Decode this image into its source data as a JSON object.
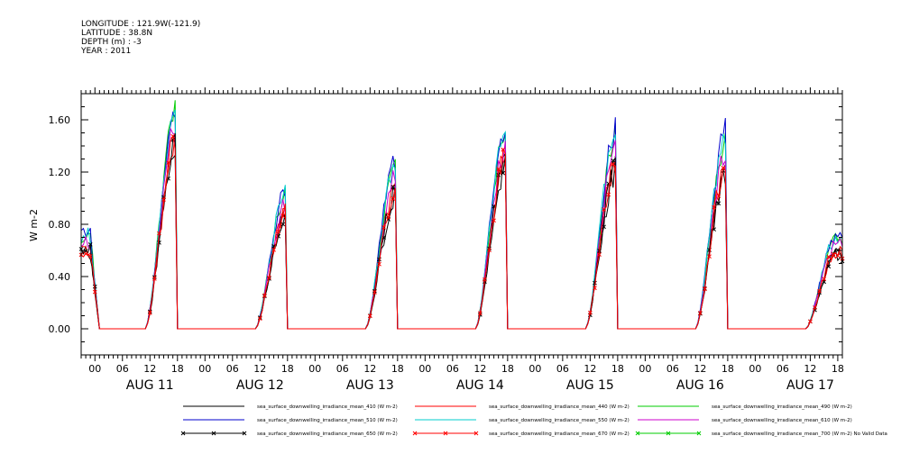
{
  "header": {
    "longitude": "LONGITUDE : 121.9W(-121.9)",
    "latitude": "LATITUDE : 38.8N",
    "depth": "DEPTH (m) : -3",
    "year": "YEAR : 2011"
  },
  "chart_data": {
    "type": "line",
    "ylabel": "W m-2",
    "ylim": [
      -0.2,
      1.8
    ],
    "yticks": [
      "0.00",
      "0.40",
      "0.80",
      "1.20",
      "1.60"
    ],
    "xlim_hours": [
      -3,
      163
    ],
    "xtick_labels": [
      "00",
      "06",
      "12",
      "18",
      "00",
      "06",
      "12",
      "18",
      "00",
      "06",
      "12",
      "18",
      "00",
      "06",
      "12",
      "18",
      "00",
      "06",
      "12",
      "18",
      "00",
      "06",
      "12",
      "18",
      "00",
      "06",
      "12",
      "18"
    ],
    "day_labels": [
      "AUG 11",
      "AUG 12",
      "AUG 13",
      "AUG 14",
      "AUG 15",
      "AUG 16",
      "AUG 17"
    ],
    "daily_peaks": [
      {
        "day": "AUG 11",
        "peak_hour": 18,
        "peak": 1.45
      },
      {
        "day": "AUG 12",
        "peak_hour": 42,
        "peak": 0.9
      },
      {
        "day": "AUG 13",
        "peak_hour": 66,
        "peak": 1.1
      },
      {
        "day": "AUG 14",
        "peak_hour": 90,
        "peak": 1.33
      },
      {
        "day": "AUG 15",
        "peak_hour": 114,
        "peak": 1.3
      },
      {
        "day": "AUG 16",
        "peak_hour": 138,
        "peak": 1.27
      },
      {
        "day": "AUG 17",
        "peak_hour": 162,
        "peak": 0.6
      }
    ],
    "series": [
      {
        "name": "sea_surface_downwelling_irradiance_mean_410 (W m-2)",
        "color": "#000000",
        "scale": 0.95,
        "marker": "none"
      },
      {
        "name": "sea_surface_downwelling_irradiance_mean_440 (W m-2)",
        "color": "#ff0000",
        "scale": 1.0,
        "marker": "none"
      },
      {
        "name": "sea_surface_downwelling_irradiance_mean_490 (W m-2)",
        "color": "#00cc00",
        "scale": 1.15,
        "marker": "none"
      },
      {
        "name": "sea_surface_downwelling_irradiance_mean_510 (W m-2)",
        "color": "#0000cc",
        "scale": 1.2,
        "marker": "none"
      },
      {
        "name": "sea_surface_downwelling_irradiance_mean_550 (W m-2)",
        "color": "#00cccc",
        "scale": 1.18,
        "marker": "none"
      },
      {
        "name": "sea_surface_downwelling_irradiance_mean_610 (W m-2)",
        "color": "#cc00cc",
        "scale": 1.08,
        "marker": "none"
      },
      {
        "name": "sea_surface_downwelling_irradiance_mean_650 (W m-2)",
        "color": "#000000",
        "scale": 0.97,
        "marker": "x"
      },
      {
        "name": "sea_surface_downwelling_irradiance_mean_670 (W m-2)",
        "color": "#ff0000",
        "scale": 1.0,
        "marker": "x"
      },
      {
        "name": "sea_surface_downwelling_irradiance_mean_700 (W m-2) No Valid Data",
        "color": "#00cc00",
        "scale": 0,
        "marker": "x"
      }
    ]
  }
}
